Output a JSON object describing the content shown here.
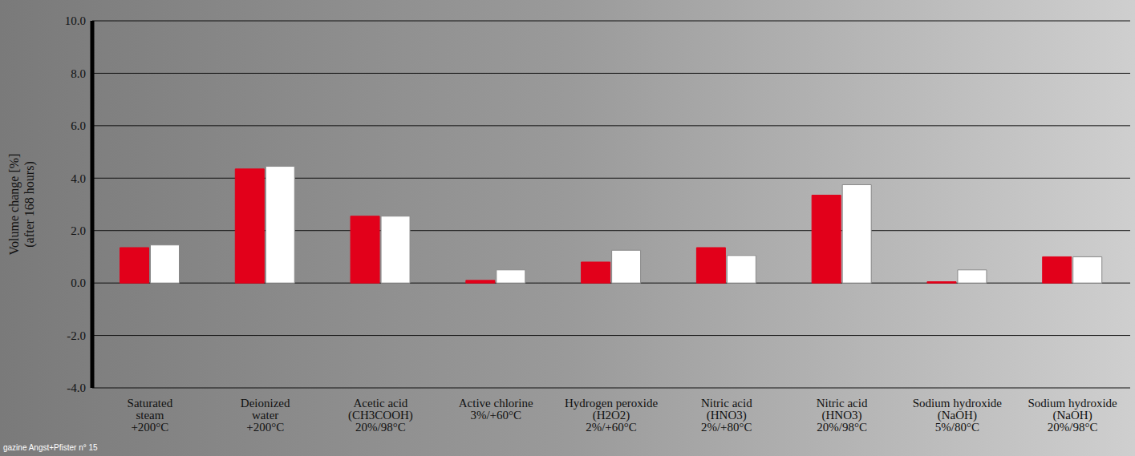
{
  "chart_data": {
    "type": "bar",
    "y_label": "Volume change [%] (after 168 hours)",
    "annotations": [
      "gazine Angst+Pfister n° 15"
    ],
    "categories": [
      "Saturated\nsteam\n+200°C",
      "Deionized\nwater\n+200°C",
      "Acetic acid\n(CH3COOH)\n20%/98°C",
      "Active chlorine\n3%/+60°C",
      "Hydrogen peroxide\n(H2O2)\n2%/+60°C",
      "Nitric acid\n(HNO3)\n2%/+80°C",
      "Nitric acid\n(HNO3)\n20%/98°C",
      "Sodium hydroxide\n(NaOH)\n5%/80°C",
      "Sodium hydroxide\n(NaOH)\n20%/98°C"
    ],
    "series": [
      {
        "color": "#e2001a",
        "values": [
          1.35,
          4.35,
          2.55,
          0.1,
          0.8,
          1.35,
          3.35,
          0.05,
          1.0
        ]
      },
      {
        "color": "#ffffff",
        "values": [
          1.45,
          4.45,
          2.55,
          0.5,
          1.25,
          1.05,
          3.75,
          0.5,
          1.0
        ]
      }
    ],
    "ylim": [
      -4,
      10
    ],
    "yticks": [
      {
        "value": -4,
        "label": "-4.0"
      },
      {
        "value": -2,
        "label": "-2.0"
      },
      {
        "value": 0,
        "label": "0.0"
      },
      {
        "value": 2,
        "label": "2.0"
      },
      {
        "value": 4,
        "label": "4.0"
      },
      {
        "value": 6,
        "label": "6.0"
      },
      {
        "value": 8,
        "label": "8.0"
      },
      {
        "value": 10,
        "label": "10.0"
      }
    ],
    "grid": true
  }
}
